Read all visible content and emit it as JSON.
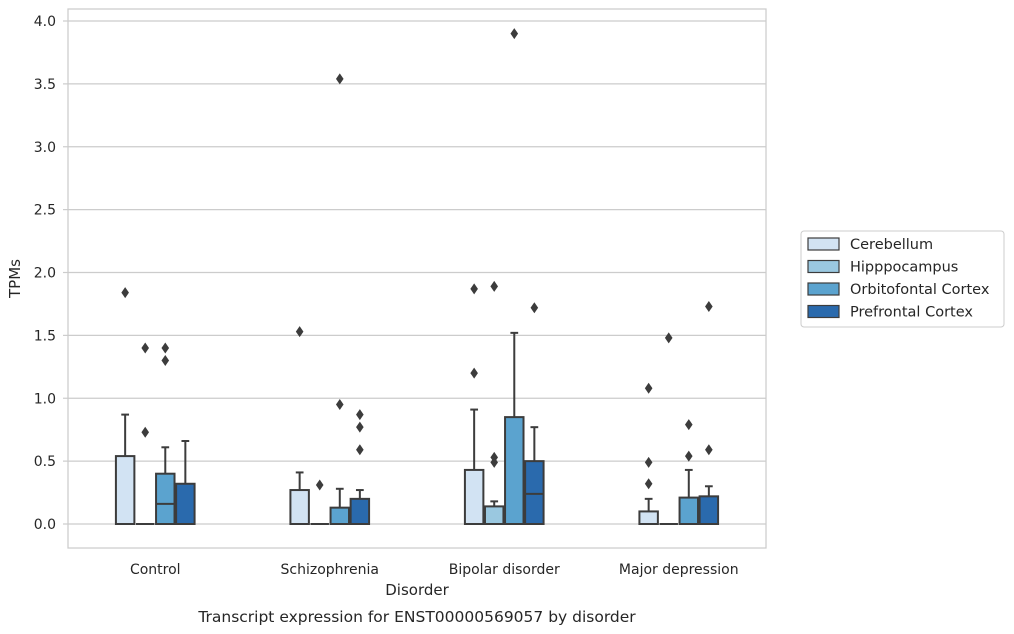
{
  "chart_data": {
    "type": "box",
    "xlabel": "Disorder",
    "ylabel": "TPMs",
    "caption": "Transcript expression for ENST00000569057 by disorder",
    "ylim": [
      -0.19,
      4.09
    ],
    "yticks": [
      "0.0",
      "0.5",
      "1.0",
      "1.5",
      "2.0",
      "2.5",
      "3.0",
      "3.5",
      "4.0"
    ],
    "grid": "horizontal",
    "legend_position": "right",
    "categories": [
      "Control",
      "Schizophrenia",
      "Bipolar disorder",
      "Major depression"
    ],
    "series": [
      {
        "name": "Cerebellum",
        "color": "#d2e3f3",
        "boxes": [
          {
            "q1": 0,
            "median": 0,
            "q3": 0.54,
            "whisker_low": 0,
            "whisker_high": 0.87,
            "outliers": [
              1.84
            ]
          },
          {
            "q1": 0,
            "median": 0,
            "q3": 0.27,
            "whisker_low": 0,
            "whisker_high": 0.41,
            "outliers": [
              1.53
            ]
          },
          {
            "q1": 0,
            "median": 0,
            "q3": 0.43,
            "whisker_low": 0,
            "whisker_high": 0.91,
            "outliers": [
              1.2,
              1.87
            ]
          },
          {
            "q1": 0,
            "median": 0,
            "q3": 0.1,
            "whisker_low": 0,
            "whisker_high": 0.2,
            "outliers": [
              0.32,
              0.49,
              1.08
            ]
          }
        ]
      },
      {
        "name": "Hipppocampus",
        "color": "#9ac8e0",
        "boxes": [
          {
            "q1": 0,
            "median": 0,
            "q3": 0,
            "whisker_low": 0,
            "whisker_high": 0,
            "outliers": [
              0.73,
              1.4
            ]
          },
          {
            "q1": 0,
            "median": 0,
            "q3": 0,
            "whisker_low": 0,
            "whisker_high": 0,
            "outliers": [
              0.31
            ]
          },
          {
            "q1": 0,
            "median": 0,
            "q3": 0.14,
            "whisker_low": 0,
            "whisker_high": 0.18,
            "outliers": [
              0.49,
              0.53,
              1.89
            ]
          },
          {
            "q1": 0,
            "median": 0,
            "q3": 0,
            "whisker_low": 0,
            "whisker_high": 0,
            "outliers": [
              1.48
            ]
          }
        ]
      },
      {
        "name": "Orbitofontal Cortex",
        "color": "#5ba3cf",
        "boxes": [
          {
            "q1": 0,
            "median": 0.16,
            "q3": 0.4,
            "whisker_low": 0,
            "whisker_high": 0.61,
            "outliers": [
              1.3,
              1.4
            ]
          },
          {
            "q1": 0,
            "median": 0,
            "q3": 0.13,
            "whisker_low": 0,
            "whisker_high": 0.28,
            "outliers": [
              0.95,
              3.54
            ]
          },
          {
            "q1": 0,
            "median": 0,
            "q3": 0.85,
            "whisker_low": 0,
            "whisker_high": 1.52,
            "outliers": [
              3.9
            ]
          },
          {
            "q1": 0,
            "median": 0,
            "q3": 0.21,
            "whisker_low": 0,
            "whisker_high": 0.43,
            "outliers": [
              0.54,
              0.79
            ]
          }
        ]
      },
      {
        "name": "Prefrontal Cortex",
        "color": "#2a6aad",
        "boxes": [
          {
            "q1": 0,
            "median": 0,
            "q3": 0.32,
            "whisker_low": 0,
            "whisker_high": 0.66,
            "outliers": []
          },
          {
            "q1": 0,
            "median": 0,
            "q3": 0.2,
            "whisker_low": 0,
            "whisker_high": 0.27,
            "outliers": [
              0.59,
              0.77,
              0.87
            ]
          },
          {
            "q1": 0,
            "median": 0.24,
            "q3": 0.5,
            "whisker_low": 0,
            "whisker_high": 0.77,
            "outliers": [
              1.72
            ]
          },
          {
            "q1": 0,
            "median": 0,
            "q3": 0.22,
            "whisker_low": 0,
            "whisker_high": 0.3,
            "outliers": [
              0.59,
              1.73
            ]
          }
        ]
      }
    ]
  }
}
